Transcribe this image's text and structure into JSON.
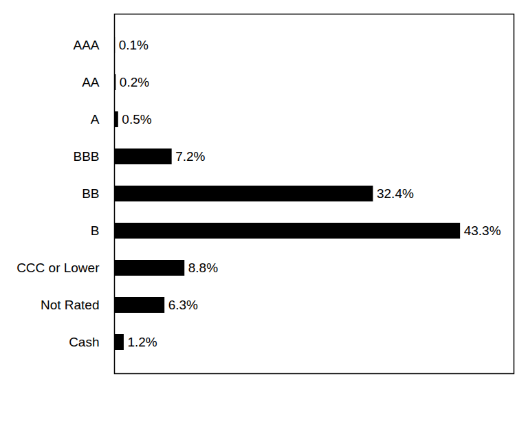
{
  "chart_data": {
    "type": "bar",
    "orientation": "horizontal",
    "categories": [
      "AAA",
      "AA",
      "A",
      "BBB",
      "BB",
      "B",
      "CCC or Lower",
      "Not Rated",
      "Cash"
    ],
    "values": [
      0.1,
      0.2,
      0.5,
      7.2,
      32.4,
      43.3,
      8.8,
      6.3,
      1.2
    ],
    "value_labels": [
      "0.1%",
      "0.2%",
      "0.5%",
      "7.2%",
      "32.4%",
      "43.3%",
      "8.8%",
      "6.3%",
      "1.2%"
    ],
    "data_labels": true,
    "color": "#000000",
    "xlim": [
      0,
      50
    ],
    "grid": false,
    "tick_labels": "y"
  }
}
